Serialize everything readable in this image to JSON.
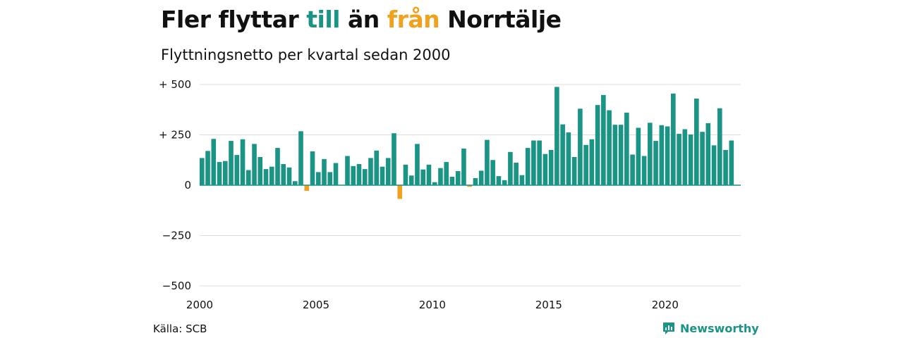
{
  "header": {
    "title_part1": "Fler flyttar ",
    "title_till": "till",
    "title_part2": " än ",
    "title_fran": "från",
    "title_part3": " Norrtälje",
    "subtitle": "Flyttningsnetto per kvartal sedan 2000"
  },
  "footer": {
    "source": "Källa: SCB",
    "brand": "Newsworthy",
    "brand_icon": "newsworthy-logo-icon"
  },
  "colors": {
    "positive": "#1a9484",
    "negative": "#f0a11e",
    "grid": "#dddddd",
    "zero_line": "#1a9484"
  },
  "chart_data": {
    "type": "bar",
    "title": "Fler flyttar till än från Norrtälje",
    "subtitle": "Flyttningsnetto per kvartal sedan 2000",
    "x_start": 2000,
    "periods_per_year": 4,
    "xlim": [
      2000,
      2023.25
    ],
    "ylim": [
      -500,
      500
    ],
    "xticks": [
      2000,
      2005,
      2010,
      2015,
      2020
    ],
    "xtick_labels": [
      "2000",
      "2005",
      "2010",
      "2015",
      "2020"
    ],
    "yticks": [
      500,
      250,
      0,
      -250,
      -500
    ],
    "ytick_labels": [
      "+ 500",
      "+ 250",
      "0",
      "−250",
      "−500"
    ],
    "grid": true,
    "values": [
      135,
      170,
      230,
      115,
      120,
      220,
      150,
      228,
      75,
      205,
      140,
      80,
      92,
      185,
      105,
      88,
      20,
      268,
      -28,
      168,
      65,
      130,
      65,
      110,
      0,
      145,
      95,
      105,
      80,
      135,
      172,
      92,
      135,
      258,
      -68,
      102,
      48,
      205,
      78,
      102,
      15,
      85,
      115,
      42,
      70,
      182,
      -8,
      35,
      72,
      225,
      125,
      45,
      25,
      165,
      112,
      50,
      185,
      222,
      222,
      155,
      175,
      488,
      302,
      262,
      140,
      380,
      200,
      228,
      398,
      448,
      372,
      300,
      300,
      360,
      152,
      285,
      145,
      310,
      220,
      298,
      292,
      455,
      255,
      278,
      252,
      430,
      265,
      308,
      198,
      382,
      175,
      222
    ]
  }
}
